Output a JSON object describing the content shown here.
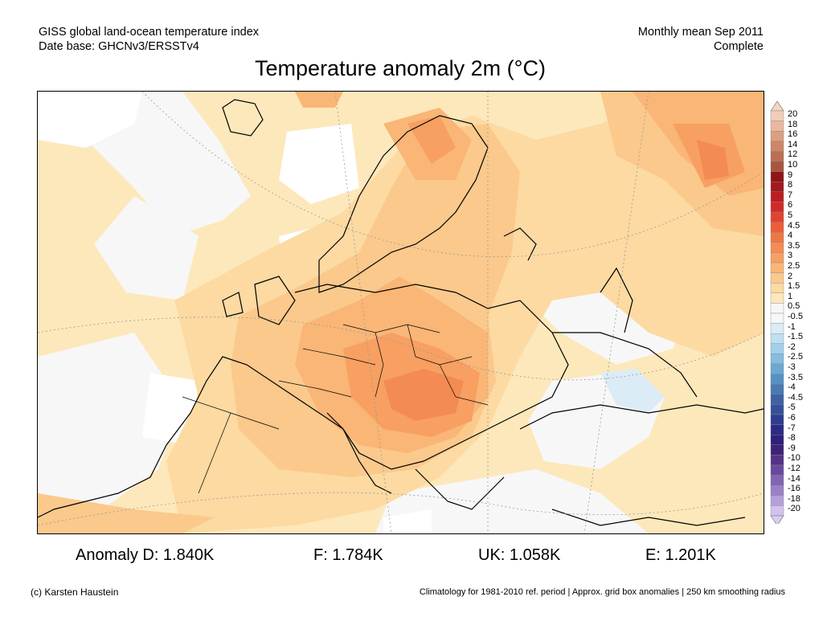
{
  "header": {
    "left_line1": "GISS global land-ocean temperature index",
    "left_line2": "Date base: GHCNv3/ERSSTv4",
    "right_line1": "Monthly mean Sep 2011",
    "right_line2": "Complete"
  },
  "title": "Temperature anomaly 2m (°C)",
  "legend": {
    "labels": [
      "20",
      "18",
      "16",
      "14",
      "12",
      "10",
      "9",
      "8",
      "7",
      "6",
      "5",
      "4.5",
      "4",
      "3.5",
      "3",
      "2.5",
      "2",
      "1.5",
      "1",
      "0.5",
      "-0.5",
      "-1",
      "-1.5",
      "-2",
      "-2.5",
      "-3",
      "-3.5",
      "-4",
      "-4.5",
      "-5",
      "-6",
      "-7",
      "-8",
      "-9",
      "-10",
      "-12",
      "-14",
      "-16",
      "-18",
      "-20"
    ],
    "colors": [
      "#f2cdb9",
      "#e9b89e",
      "#dc9f82",
      "#cd8667",
      "#bd6e52",
      "#a8553e",
      "#8e1518",
      "#a3191c",
      "#bb1e22",
      "#d02a27",
      "#e1442f",
      "#ec5e38",
      "#f07744",
      "#f48b52",
      "#f7a062",
      "#f9b676",
      "#fbc98c",
      "#fcdaa2",
      "#fde8bb",
      "#f7f7f7",
      "#f7f7f7",
      "#dcecf7",
      "#bfdff2",
      "#a2d0ea",
      "#86bcde",
      "#6ca8d2",
      "#5791c3",
      "#487ab3",
      "#3d63a2",
      "#35509a",
      "#2e3d8f",
      "#2a2c85",
      "#302078",
      "#3e2275",
      "#553188",
      "#6b48a0",
      "#8264b5",
      "#9a80c8",
      "#b59fdb",
      "#d2c2ec"
    ],
    "top_color": "#f5d4c4",
    "bottom_color": "#d8cdf2"
  },
  "stats": {
    "anomaly_d": "Anomaly D: 1.840K",
    "f": "F: 1.784K",
    "uk": "UK: 1.058K",
    "e": "E: 1.201K"
  },
  "footer": {
    "left": "(c) Karsten Haustein",
    "right": "Climatology for 1981-2010 ref. period | Approx. grid box anomalies | 250 km smoothing radius"
  }
}
